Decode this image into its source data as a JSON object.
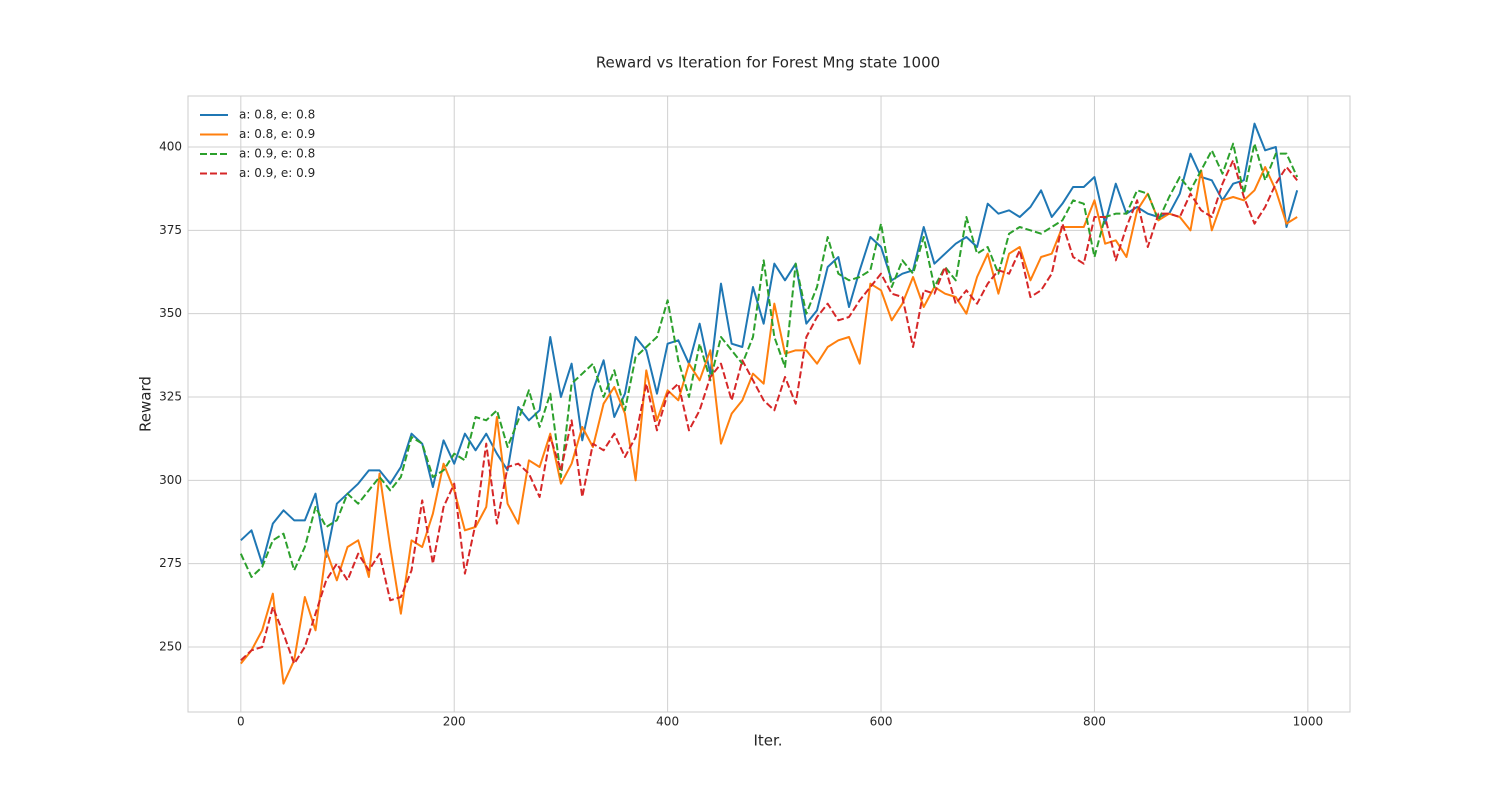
{
  "chart_data": {
    "type": "line",
    "title": "Reward vs Iteration for Forest Mng state 1000",
    "xlabel": "Iter.",
    "ylabel": "Reward",
    "x": [
      0,
      10,
      20,
      30,
      40,
      50,
      60,
      70,
      80,
      90,
      100,
      110,
      120,
      130,
      140,
      150,
      160,
      170,
      180,
      190,
      200,
      210,
      220,
      230,
      240,
      250,
      260,
      270,
      280,
      290,
      300,
      310,
      320,
      330,
      340,
      350,
      360,
      370,
      380,
      390,
      400,
      410,
      420,
      430,
      440,
      450,
      460,
      470,
      480,
      490,
      500,
      510,
      520,
      530,
      540,
      550,
      560,
      570,
      580,
      590,
      600,
      610,
      620,
      630,
      640,
      650,
      660,
      670,
      680,
      690,
      700,
      710,
      720,
      730,
      740,
      750,
      760,
      770,
      780,
      790,
      800,
      810,
      820,
      830,
      840,
      850,
      860,
      870,
      880,
      890,
      900,
      910,
      920,
      930,
      940,
      950,
      960,
      970,
      980,
      990
    ],
    "series": [
      {
        "name": "a: 0.8, e: 0.8",
        "color": "#1f77b4",
        "linestyle": "solid",
        "values": [
          282,
          285,
          275,
          287,
          291,
          288,
          288,
          296,
          277,
          293,
          296,
          299,
          303,
          303,
          299,
          304,
          314,
          311,
          298,
          312,
          305,
          314,
          309,
          314,
          308,
          303,
          322,
          318,
          321,
          343,
          325,
          335,
          312,
          327,
          336,
          319,
          326,
          343,
          339,
          326,
          341,
          342,
          335,
          347,
          332,
          359,
          341,
          340,
          358,
          347,
          365,
          360,
          365,
          347,
          351,
          364,
          367,
          352,
          363,
          373,
          370,
          360,
          362,
          363,
          376,
          365,
          368,
          371,
          373,
          370,
          383,
          380,
          381,
          379,
          382,
          387,
          379,
          383,
          388,
          388,
          391,
          377,
          389,
          380,
          382,
          380,
          379,
          380,
          386,
          398,
          391,
          390,
          384,
          389,
          390,
          407,
          399,
          400,
          376,
          387
        ]
      },
      {
        "name": "a: 0.8, e: 0.9",
        "color": "#ff7f0e",
        "linestyle": "solid",
        "values": [
          245,
          249,
          255,
          266,
          239,
          246,
          265,
          255,
          279,
          270,
          280,
          282,
          271,
          302,
          280,
          260,
          282,
          280,
          290,
          305,
          297,
          285,
          286,
          292,
          319,
          293,
          287,
          306,
          304,
          314,
          299,
          305,
          316,
          310,
          323,
          328,
          320,
          300,
          333,
          318,
          327,
          324,
          335,
          330,
          339,
          311,
          320,
          324,
          332,
          329,
          353,
          338,
          339,
          339,
          335,
          340,
          342,
          343,
          335,
          359,
          357,
          348,
          353,
          361,
          352,
          358,
          356,
          355,
          350,
          361,
          368,
          356,
          368,
          370,
          360,
          367,
          368,
          376,
          376,
          376,
          384,
          371,
          372,
          367,
          381,
          386,
          378,
          380,
          379,
          375,
          393,
          375,
          384,
          385,
          384,
          387,
          394,
          387,
          377,
          379
        ]
      },
      {
        "name": "a: 0.9, e: 0.8",
        "color": "#2ca02c",
        "linestyle": "dashed",
        "values": [
          278,
          271,
          274,
          282,
          284,
          273,
          280,
          292,
          286,
          288,
          296,
          293,
          297,
          301,
          297,
          301,
          313,
          311,
          301,
          303,
          308,
          306,
          319,
          318,
          321,
          310,
          318,
          327,
          316,
          326,
          301,
          329,
          332,
          335,
          325,
          333,
          321,
          337,
          340,
          343,
          354,
          336,
          325,
          341,
          330,
          343,
          339,
          335,
          343,
          366,
          343,
          334,
          365,
          350,
          358,
          373,
          362,
          360,
          361,
          363,
          377,
          358,
          366,
          362,
          373,
          358,
          364,
          360,
          379,
          368,
          370,
          362,
          374,
          376,
          375,
          374,
          376,
          378,
          384,
          383,
          367,
          379,
          380,
          380,
          387,
          386,
          378,
          385,
          391,
          387,
          393,
          399,
          392,
          401,
          386,
          401,
          390,
          398,
          398,
          391
        ]
      },
      {
        "name": "a: 0.9, e: 0.9",
        "color": "#d62728",
        "linestyle": "dashed",
        "values": [
          246,
          249,
          250,
          262,
          254,
          245,
          250,
          260,
          270,
          275,
          270,
          278,
          273,
          278,
          264,
          265,
          273,
          294,
          275,
          292,
          299,
          272,
          287,
          311,
          287,
          304,
          305,
          302,
          295,
          313,
          303,
          318,
          295,
          311,
          309,
          314,
          307,
          313,
          329,
          315,
          326,
          329,
          315,
          321,
          331,
          335,
          324,
          336,
          330,
          324,
          321,
          331,
          323,
          343,
          349,
          353,
          348,
          349,
          354,
          358,
          362,
          356,
          355,
          340,
          357,
          356,
          364,
          353,
          357,
          353,
          359,
          363,
          362,
          369,
          355,
          357,
          362,
          377,
          367,
          365,
          379,
          379,
          366,
          376,
          384,
          370,
          380,
          380,
          379,
          386,
          381,
          379,
          389,
          396,
          385,
          377,
          382,
          389,
          394,
          390
        ]
      }
    ],
    "xlim": [
      -49.5,
      1039.5
    ],
    "ylim": [
      230.5,
      415.3
    ],
    "xticks": [
      0,
      200,
      400,
      600,
      800,
      1000
    ],
    "yticks": [
      250,
      275,
      300,
      325,
      350,
      375,
      400
    ],
    "grid": true,
    "legend": "upper left"
  }
}
